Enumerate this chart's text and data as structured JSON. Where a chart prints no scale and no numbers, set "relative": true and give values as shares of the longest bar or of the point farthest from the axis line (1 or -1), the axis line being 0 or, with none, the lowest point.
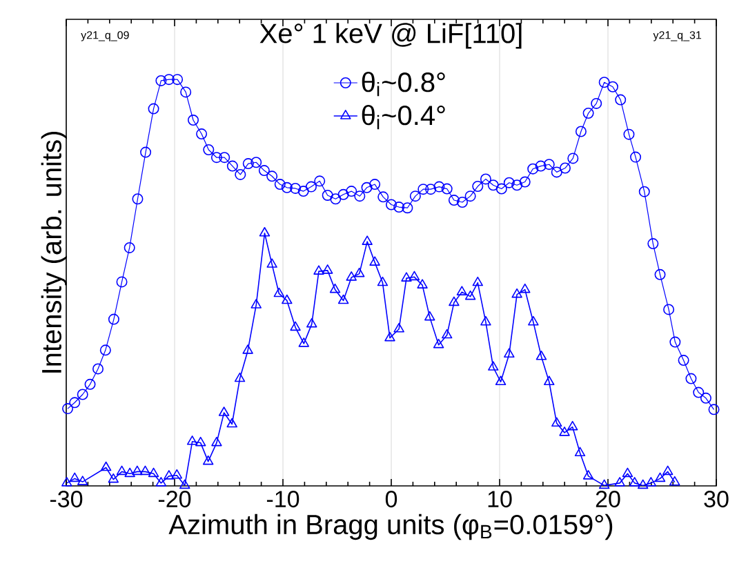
{
  "chart_data": {
    "type": "line",
    "title": "Xe° 1 keV @ LiF[110]",
    "xlabel": "Azimuth in Bragg units (φ$_{B}$=0.0159°)",
    "ylabel": "Intensity (arb. units)",
    "annotations": [
      "y21_q_09",
      "y21_q_31"
    ],
    "relative": true,
    "xlim": [
      -30,
      30
    ],
    "xticks": [
      -30,
      -20,
      -10,
      0,
      10,
      20,
      30
    ],
    "grid": "x",
    "legend": "top",
    "line_style": "solid",
    "series": [
      {
        "name": "θ$_{i}$~0.8°",
        "color": "#0000ff",
        "marker": "circle",
        "x": [
          -29.87,
          -29.22,
          -28.49,
          -27.8,
          -27.07,
          -26.38,
          -25.61,
          -24.87,
          -24.16,
          -23.41,
          -22.67,
          -21.94,
          -21.25,
          -20.52,
          -19.74,
          -18.97,
          -18.28,
          -17.51,
          -16.86,
          -16.12,
          -15.4,
          -14.66,
          -13.93,
          -13.2,
          -12.47,
          -11.73,
          -11.01,
          -10.27,
          -9.63,
          -8.85,
          -8.11,
          -7.39,
          -6.61,
          -5.88,
          -5.14,
          -4.42,
          -3.68,
          -2.91,
          -2.26,
          -1.52,
          -0.75,
          0,
          0.71,
          1.49,
          2.22,
          2.95,
          3.64,
          4.42,
          5.14,
          5.79,
          6.56,
          7.3,
          7.98,
          8.72,
          9.41,
          10.18,
          10.88,
          11.6,
          12.34,
          13.07,
          13.8,
          14.57,
          15.27,
          16.05,
          16.77,
          17.51,
          18.19,
          18.93,
          19.66,
          20.44,
          21.16,
          21.94,
          22.55,
          23.36,
          24.16,
          24.81,
          25.61,
          26.2,
          26.98,
          27.67,
          28.36,
          29.04,
          29.78
        ],
        "values": [
          0.19,
          0.205,
          0.225,
          0.25,
          0.288,
          0.334,
          0.41,
          0.502,
          0.586,
          0.706,
          0.821,
          0.928,
          0.997,
          1.0,
          1.0,
          0.969,
          0.9,
          0.866,
          0.827,
          0.808,
          0.808,
          0.787,
          0.766,
          0.793,
          0.796,
          0.776,
          0.762,
          0.742,
          0.734,
          0.732,
          0.725,
          0.736,
          0.75,
          0.715,
          0.706,
          0.717,
          0.725,
          0.713,
          0.734,
          0.742,
          0.711,
          0.692,
          0.686,
          0.684,
          0.713,
          0.73,
          0.73,
          0.736,
          0.731,
          0.703,
          0.698,
          0.713,
          0.737,
          0.755,
          0.74,
          0.731,
          0.746,
          0.74,
          0.748,
          0.78,
          0.787,
          0.791,
          0.772,
          0.782,
          0.806,
          0.872,
          0.917,
          0.941,
          0.993,
          0.982,
          0.95,
          0.865,
          0.809,
          0.724,
          0.596,
          0.52,
          0.434,
          0.354,
          0.309,
          0.264,
          0.23,
          0.216,
          0.188
        ]
      },
      {
        "name": "θ$_{i}$~0.4°",
        "color": "#0000ff",
        "marker": "triangle",
        "x": [
          -29.95,
          -29.22,
          -28.49,
          -26.33,
          -25.65,
          -24.87,
          -24.13,
          -23.45,
          -22.71,
          -21.94,
          -21.25,
          -20.52,
          -19.79,
          -19.06,
          -18.37,
          -17.6,
          -16.9,
          -16.12,
          -15.44,
          -14.7,
          -13.98,
          -13.24,
          -12.47,
          -11.69,
          -11.01,
          -10.36,
          -9.63,
          -8.85,
          -8.07,
          -7.34,
          -6.69,
          -5.88,
          -5.19,
          -4.42,
          -3.68,
          -2.95,
          -2.22,
          -1.52,
          -0.8,
          -0.13,
          0.71,
          1.4,
          2.13,
          2.87,
          3.55,
          4.37,
          5.14,
          5.79,
          6.52,
          7.3,
          7.98,
          8.72,
          9.41,
          10.1,
          10.88,
          11.6,
          12.34,
          13.11,
          13.85,
          14.57,
          15.27,
          15.99,
          16.73,
          17.42,
          18.19,
          19.66,
          21.09,
          21.81,
          22.46,
          23.23,
          23.97,
          24.81,
          25.52,
          26.16
        ],
        "values": [
          0.007,
          0.018,
          0.01,
          0.045,
          0.016,
          0.035,
          0.03,
          0.035,
          0.035,
          0.03,
          0.007,
          0.024,
          0.026,
          0.001,
          0.109,
          0.106,
          0.06,
          0.106,
          0.18,
          0.152,
          0.264,
          0.333,
          0.445,
          0.622,
          0.545,
          0.473,
          0.456,
          0.39,
          0.35,
          0.398,
          0.528,
          0.53,
          0.483,
          0.456,
          0.513,
          0.522,
          0.601,
          0.55,
          0.5,
          0.364,
          0.386,
          0.511,
          0.514,
          0.494,
          0.415,
          0.347,
          0.371,
          0.451,
          0.477,
          0.466,
          0.5,
          0.403,
          0.292,
          0.256,
          0.324,
          0.471,
          0.483,
          0.403,
          0.318,
          0.256,
          0.154,
          0.131,
          0.145,
          0.081,
          0.024,
          0.001,
          0.007,
          0.03,
          0.007,
          0.001,
          0.007,
          0.018,
          0.035,
          0.009
        ]
      }
    ]
  }
}
